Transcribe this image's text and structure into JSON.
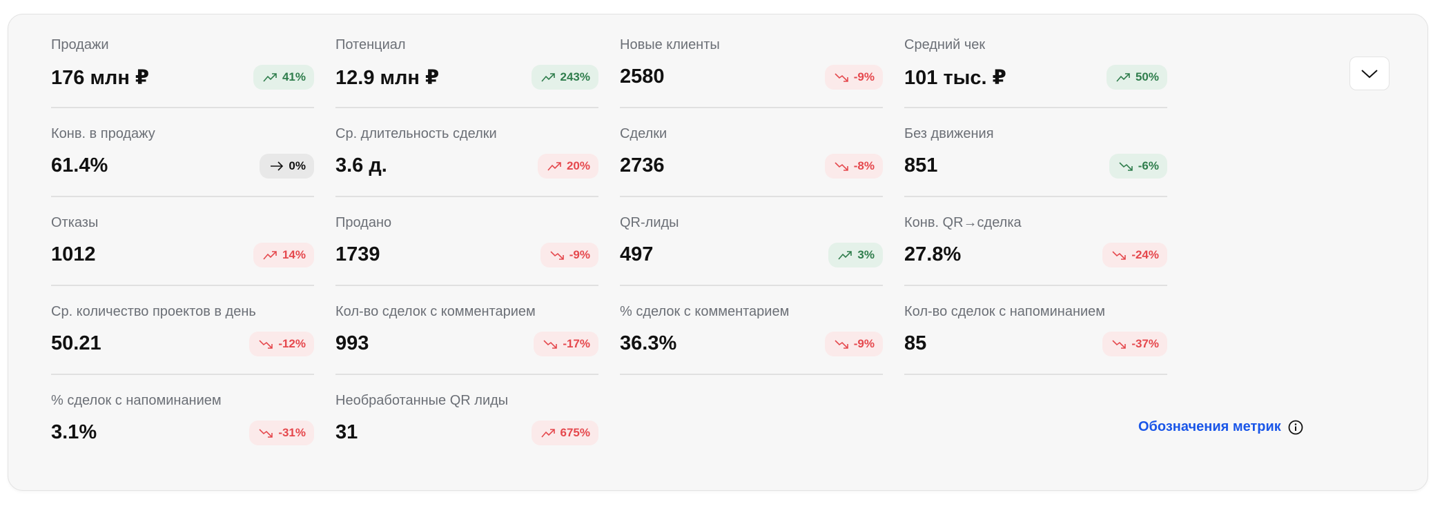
{
  "colors": {
    "good_bg": "#e4f1e9",
    "good_text": "#2f7d4c",
    "bad_bg": "#fbeaea",
    "bad_text": "#e5484d",
    "neutral_bg": "#e8e8e8",
    "link": "#1a56e8"
  },
  "metrics": [
    {
      "label": "Продажи",
      "value": "176 млн ₽",
      "change": "41%",
      "trend": "up",
      "sentiment": "good"
    },
    {
      "label": "Потенциал",
      "value": "12.9 млн ₽",
      "change": "243%",
      "trend": "up",
      "sentiment": "good"
    },
    {
      "label": "Новые клиенты",
      "value": "2580",
      "change": "-9%",
      "trend": "down",
      "sentiment": "bad"
    },
    {
      "label": "Средний чек",
      "value": "101 тыс. ₽",
      "change": "50%",
      "trend": "up",
      "sentiment": "good"
    },
    {
      "label": "Конв. в продажу",
      "value": "61.4%",
      "change": "0%",
      "trend": "flat",
      "sentiment": "neutral"
    },
    {
      "label": "Ср. длительность сделки",
      "value": "3.6 д.",
      "change": "20%",
      "trend": "up",
      "sentiment": "bad"
    },
    {
      "label": "Сделки",
      "value": "2736",
      "change": "-8%",
      "trend": "down",
      "sentiment": "bad"
    },
    {
      "label": "Без движения",
      "value": "851",
      "change": "-6%",
      "trend": "down",
      "sentiment": "good"
    },
    {
      "label": "Отказы",
      "value": "1012",
      "change": "14%",
      "trend": "up",
      "sentiment": "bad"
    },
    {
      "label": "Продано",
      "value": "1739",
      "change": "-9%",
      "trend": "down",
      "sentiment": "bad"
    },
    {
      "label": "QR-лиды",
      "value": "497",
      "change": "3%",
      "trend": "up",
      "sentiment": "good"
    },
    {
      "label": "Конв. QR→сделка",
      "value": "27.8%",
      "change": "-24%",
      "trend": "down",
      "sentiment": "bad"
    },
    {
      "label": "Ср. количество проектов в день",
      "value": "50.21",
      "change": "-12%",
      "trend": "down",
      "sentiment": "bad"
    },
    {
      "label": "Кол-во сделок с комментарием",
      "value": "993",
      "change": "-17%",
      "trend": "down",
      "sentiment": "bad"
    },
    {
      "label": "% сделок с комментарием",
      "value": "36.3%",
      "change": "-9%",
      "trend": "down",
      "sentiment": "bad"
    },
    {
      "label": "Кол-во сделок с напоминанием",
      "value": "85",
      "change": "-37%",
      "trend": "down",
      "sentiment": "bad"
    },
    {
      "label": "% сделок с напоминанием",
      "value": "3.1%",
      "change": "-31%",
      "trend": "down",
      "sentiment": "bad"
    },
    {
      "label": "Необработанные QR лиды",
      "value": "31",
      "change": "675%",
      "trend": "up",
      "sentiment": "bad"
    }
  ],
  "legend_link": {
    "label": "Обозначения метрик",
    "icon": "info-icon"
  },
  "collapse_button": {
    "icon": "chevron-down-icon"
  }
}
